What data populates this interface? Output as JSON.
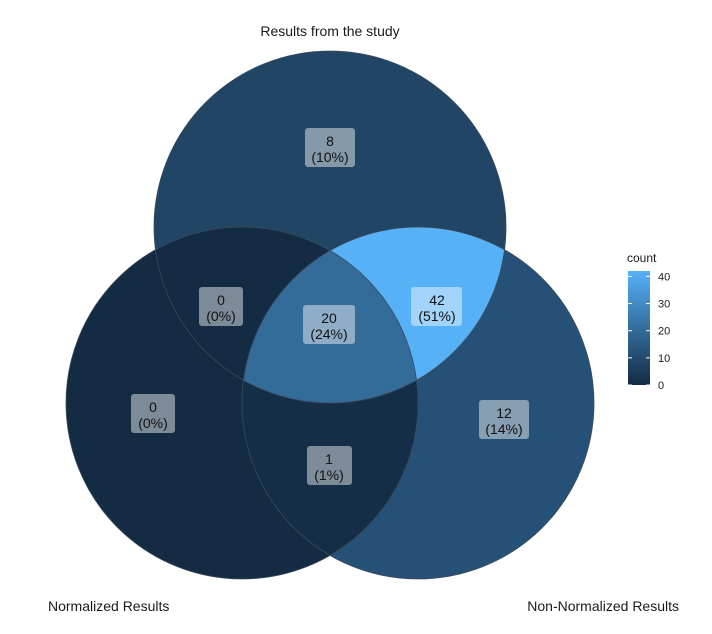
{
  "sets": [
    {
      "id": "study",
      "label": "Results from the study"
    },
    {
      "id": "normalized",
      "label": "Normalized Results"
    },
    {
      "id": "non_normalized",
      "label": "Non-Normalized Results"
    }
  ],
  "regions": [
    {
      "id": "study_only",
      "sets": [
        "study"
      ],
      "count": "8",
      "percent": "(10%)"
    },
    {
      "id": "normalized_only",
      "sets": [
        "normalized"
      ],
      "count": "0",
      "percent": "(0%)"
    },
    {
      "id": "non_normalized_only",
      "sets": [
        "non_normalized"
      ],
      "count": "12",
      "percent": "(14%)"
    },
    {
      "id": "study_normalized",
      "sets": [
        "study",
        "normalized"
      ],
      "count": "0",
      "percent": "(0%)"
    },
    {
      "id": "study_non_normalized",
      "sets": [
        "study",
        "non_normalized"
      ],
      "count": "42",
      "percent": "(51%)"
    },
    {
      "id": "normalized_non_normalized",
      "sets": [
        "normalized",
        "non_normalized"
      ],
      "count": "1",
      "percent": "(1%)"
    },
    {
      "id": "all_three",
      "sets": [
        "study",
        "normalized",
        "non_normalized"
      ],
      "count": "20",
      "percent": "(24%)"
    }
  ],
  "legend": {
    "title": "count",
    "ticks": [
      "0",
      "10",
      "20",
      "30",
      "40"
    ],
    "scale_min": 0,
    "scale_max": 42,
    "color_low": "#132B43",
    "color_high": "#56B1F7"
  }
}
